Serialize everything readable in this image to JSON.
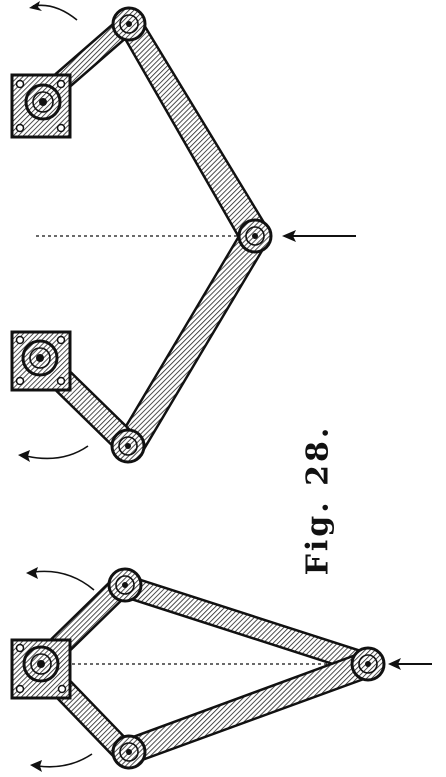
{
  "figure": {
    "caption": "Fig. 28."
  }
}
